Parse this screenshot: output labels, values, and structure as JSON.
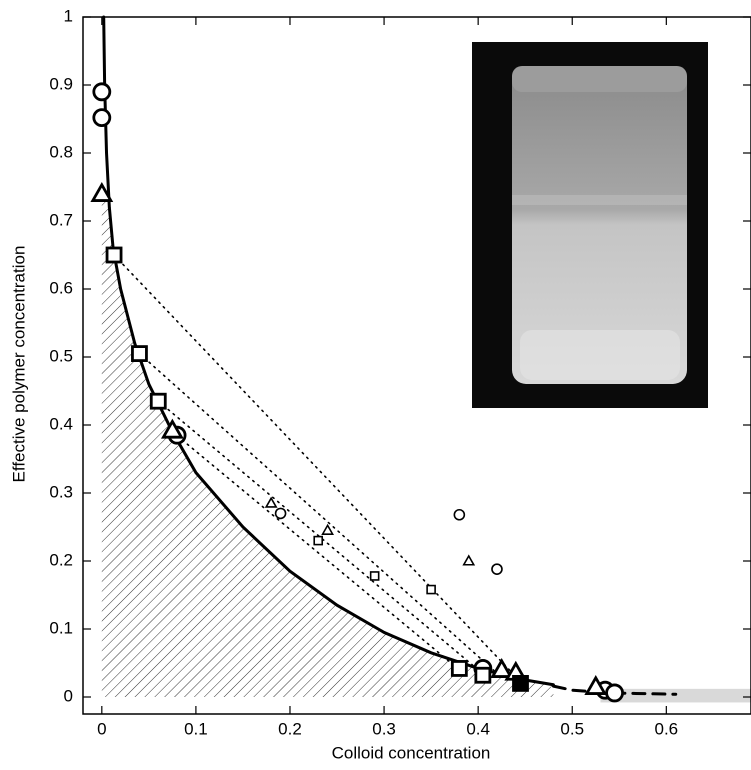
{
  "chart_data": {
    "type": "scatter",
    "x_label": "Colloid concentration",
    "y_label": "Effective polymer concentration",
    "xlim": [
      -0.02,
      0.69
    ],
    "ylim": [
      -0.025,
      1
    ],
    "xticks": [
      0,
      0.1,
      0.2,
      0.3,
      0.4,
      0.5,
      0.6
    ],
    "yticks": [
      0,
      0.1,
      0.2,
      0.3,
      0.4,
      0.5,
      0.6,
      0.7,
      0.8,
      0.9,
      1
    ],
    "band": {
      "x": [
        0.53,
        0.69
      ],
      "y": [
        -0.008,
        0.012
      ],
      "color": "#d9d9d9"
    },
    "hatched": true,
    "lines": [
      {
        "style": "solid",
        "color": "#000000",
        "x": [
          0.002,
          0.003,
          0.005,
          0.008,
          0.012,
          0.02,
          0.035,
          0.05,
          0.075,
          0.1,
          0.15,
          0.2,
          0.25,
          0.3,
          0.35,
          0.4,
          0.45,
          0.48
        ],
        "values": [
          1,
          0.9,
          0.8,
          0.72,
          0.66,
          0.6,
          0.52,
          0.46,
          0.39,
          0.33,
          0.25,
          0.185,
          0.135,
          0.095,
          0.065,
          0.042,
          0.025,
          0.018
        ]
      },
      {
        "style": "dashed",
        "color": "#000000",
        "x": [
          0.48,
          0.5,
          0.54,
          0.61
        ],
        "values": [
          0.016,
          0.01,
          0.006,
          0.004
        ]
      },
      {
        "style": "dotted",
        "color": "#000000",
        "x": [
          0.013,
          0.44
        ],
        "values": [
          0.65,
          0.03
        ]
      },
      {
        "style": "dotted",
        "color": "#000000",
        "x": [
          0.04,
          0.42
        ],
        "values": [
          0.505,
          0.035
        ]
      },
      {
        "style": "dotted",
        "color": "#000000",
        "x": [
          0.06,
          0.4
        ],
        "values": [
          0.435,
          0.04
        ]
      },
      {
        "style": "dotted",
        "color": "#000000",
        "x": [
          0.075,
          0.38
        ],
        "values": [
          0.39,
          0.04
        ]
      }
    ],
    "series": [
      {
        "marker": "circle",
        "size": 8,
        "filled": false,
        "color": "#000000",
        "x": [
          0,
          0,
          0.08,
          0.405,
          0.535,
          0.545
        ],
        "values": [
          0.89,
          0.852,
          0.385,
          0.042,
          0.01,
          0.006
        ]
      },
      {
        "marker": "triangle",
        "size": 9,
        "filled": false,
        "color": "#000000",
        "x": [
          0,
          0.075,
          0.425,
          0.44,
          0.525
        ],
        "values": [
          0.74,
          0.392,
          0.04,
          0.036,
          0.015
        ]
      },
      {
        "marker": "square",
        "size": 7,
        "filled": false,
        "color": "#000000",
        "x": [
          0.013,
          0.04,
          0.06,
          0.38,
          0.405
        ],
        "values": [
          0.65,
          0.505,
          0.435,
          0.042,
          0.032
        ]
      },
      {
        "marker": "square",
        "size": 7,
        "filled": true,
        "color": "#000000",
        "x": [
          0.445
        ],
        "values": [
          0.02
        ]
      },
      {
        "marker": "triangle",
        "size": 5,
        "filled": false,
        "color": "#000000",
        "x": [
          0.18,
          0.24,
          0.39
        ],
        "values": [
          0.285,
          0.245,
          0.2
        ]
      },
      {
        "marker": "circle",
        "size": 5,
        "filled": false,
        "color": "#000000",
        "x": [
          0.19,
          0.38,
          0.42
        ],
        "values": [
          0.27,
          0.268,
          0.188
        ]
      },
      {
        "marker": "square",
        "size": 4,
        "filled": false,
        "color": "#000000",
        "x": [
          0.23,
          0.29,
          0.35
        ],
        "values": [
          0.23,
          0.178,
          0.158
        ]
      }
    ]
  }
}
